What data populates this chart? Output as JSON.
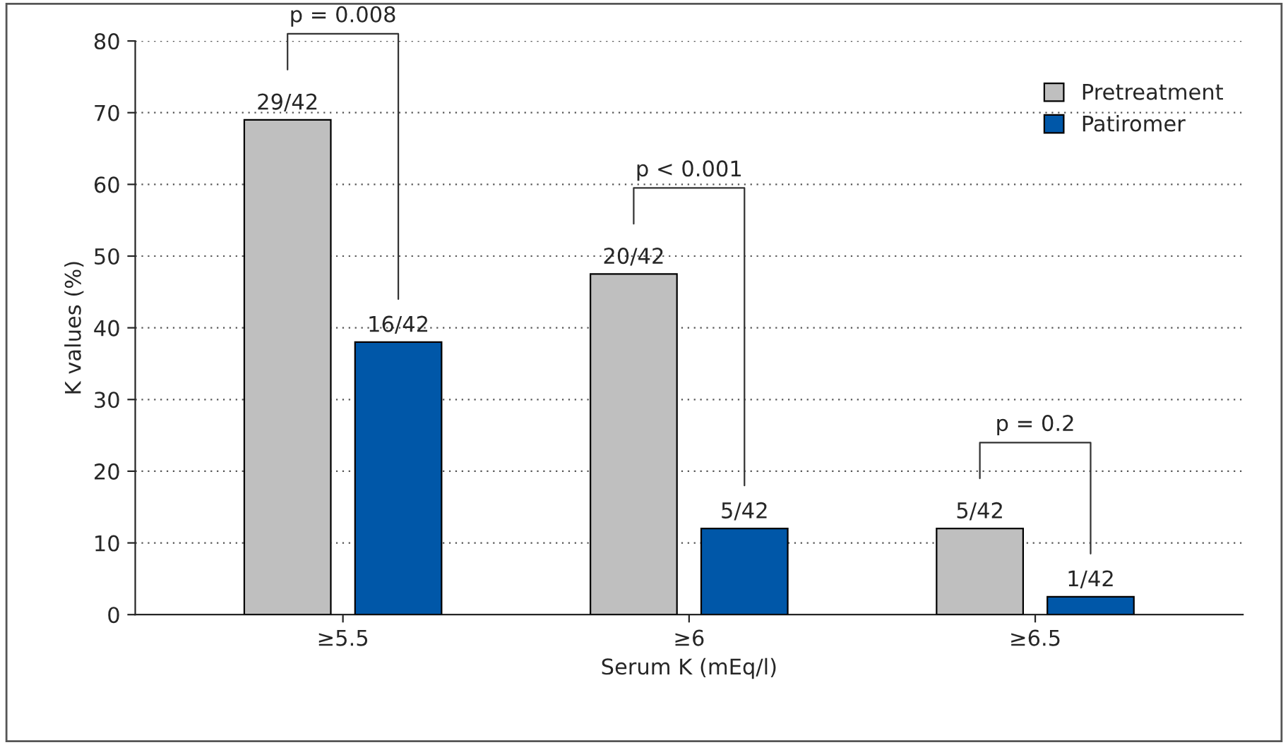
{
  "chart_data": {
    "type": "bar",
    "xlabel": "Serum K (mEq/l)",
    "ylabel": "K values (%)",
    "categories": [
      "≥5.5",
      "≥6",
      "≥6.5"
    ],
    "series": [
      {
        "name": "Pretreatment",
        "color": "#bfbfbf",
        "values": [
          69,
          47.5,
          12
        ],
        "value_labels": [
          "29/42",
          "20/42",
          "5/42"
        ]
      },
      {
        "name": "Patiromer",
        "color": "#0057a8",
        "values": [
          38,
          12,
          2.5
        ],
        "value_labels": [
          "16/42",
          "5/42",
          "1/42"
        ]
      }
    ],
    "ylim": [
      0,
      80
    ],
    "yticks": [
      0,
      10,
      20,
      30,
      40,
      50,
      60,
      70,
      80
    ],
    "grid": "y",
    "legend": "top right",
    "annotations": [
      "p = 0.008",
      "p < 0.001",
      "p = 0.2"
    ]
  }
}
